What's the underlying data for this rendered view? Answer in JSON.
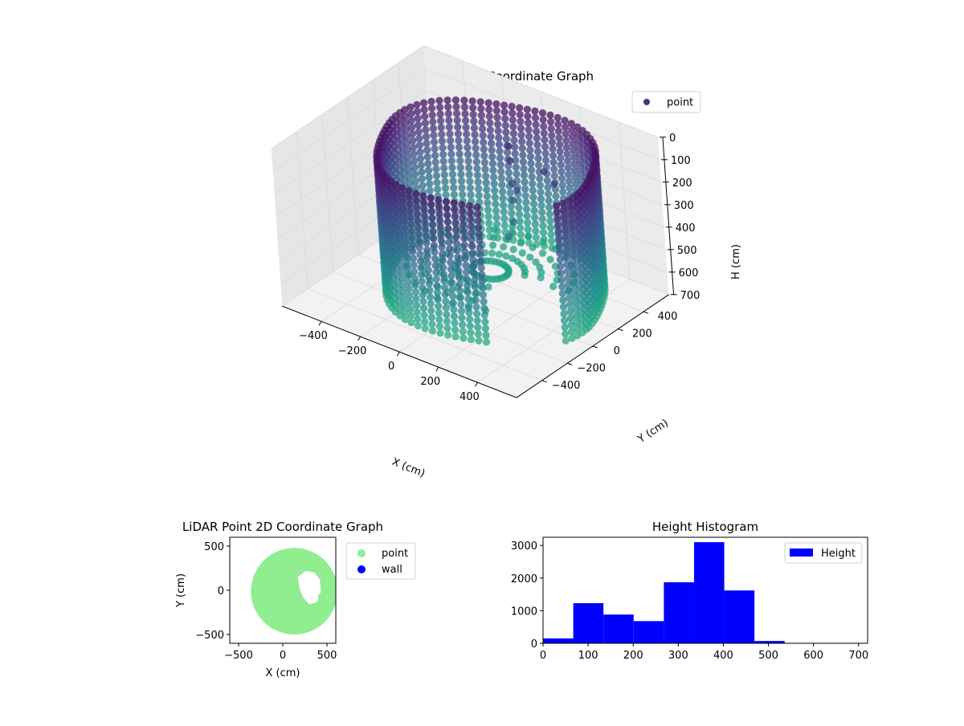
{
  "chart_data": [
    {
      "type": "scatter",
      "title": "LiDAR Point 3D Coordinate Graph",
      "xlabel": "X (cm)",
      "ylabel": "Y (cm)",
      "zlabel": "H (cm)",
      "xlim": [
        -600,
        600
      ],
      "ylim": [
        -600,
        600
      ],
      "zlim": [
        0,
        700
      ],
      "z_inverted": true,
      "xticks": [
        -400,
        -200,
        0,
        200,
        400
      ],
      "xtick_labels": [
        "−400",
        "−200",
        "0",
        "200",
        "400"
      ],
      "yticks": [
        -400,
        -200,
        0,
        200,
        400
      ],
      "ytick_labels": [
        "−400",
        "−200",
        "0",
        "200",
        "400"
      ],
      "zticks": [
        0,
        100,
        200,
        300,
        400,
        500,
        600,
        700
      ],
      "ztick_labels": [
        "0",
        "100",
        "200",
        "300",
        "400",
        "500",
        "600",
        "700"
      ],
      "legend": {
        "entries": [
          "point"
        ],
        "placement": "upper-right",
        "color": "#443983"
      },
      "colormap": "viridis",
      "series": [
        {
          "name": "point",
          "description_values": {
            "ring_center": [
              130,
              -30
            ],
            "ring_radius": 480,
            "wall_height_range": [
              0,
              600
            ],
            "gap_angle_range_deg": [
              -60,
              -20
            ]
          }
        }
      ],
      "grid": true
    },
    {
      "type": "scatter",
      "title": "LiDAR Point 2D Coordinate Graph",
      "xlabel": "X (cm)",
      "ylabel": "Y (cm)",
      "xlim": [
        -600,
        600
      ],
      "ylim": [
        -600,
        600
      ],
      "xticks": [
        -500,
        0,
        500
      ],
      "xtick_labels": [
        "−500",
        "0",
        "500"
      ],
      "yticks": [
        -500,
        0,
        500
      ],
      "ytick_labels": [
        "−500",
        "0",
        "500"
      ],
      "legend": {
        "entries": [
          "point",
          "wall"
        ],
        "placement": "outside-right"
      },
      "series": [
        {
          "name": "point",
          "color": "#90ee90"
        },
        {
          "name": "wall",
          "color": "#0000ff"
        }
      ]
    },
    {
      "type": "bar",
      "title": "Height Histogram",
      "xlim": [
        0,
        720
      ],
      "ylim": [
        0,
        3250
      ],
      "xticks": [
        0,
        100,
        200,
        300,
        400,
        500,
        600,
        700
      ],
      "yticks": [
        0,
        1000,
        2000,
        3000
      ],
      "bin_edges": [
        0,
        67,
        134,
        201,
        268,
        335,
        402,
        469,
        536,
        603,
        670
      ],
      "values": [
        150,
        1230,
        880,
        680,
        1870,
        3100,
        1620,
        70,
        5,
        5
      ],
      "color": "#0000ff",
      "legend": {
        "entries": [
          "Height"
        ],
        "placement": "upper-right"
      },
      "series": [
        {
          "name": "Height"
        }
      ]
    }
  ]
}
